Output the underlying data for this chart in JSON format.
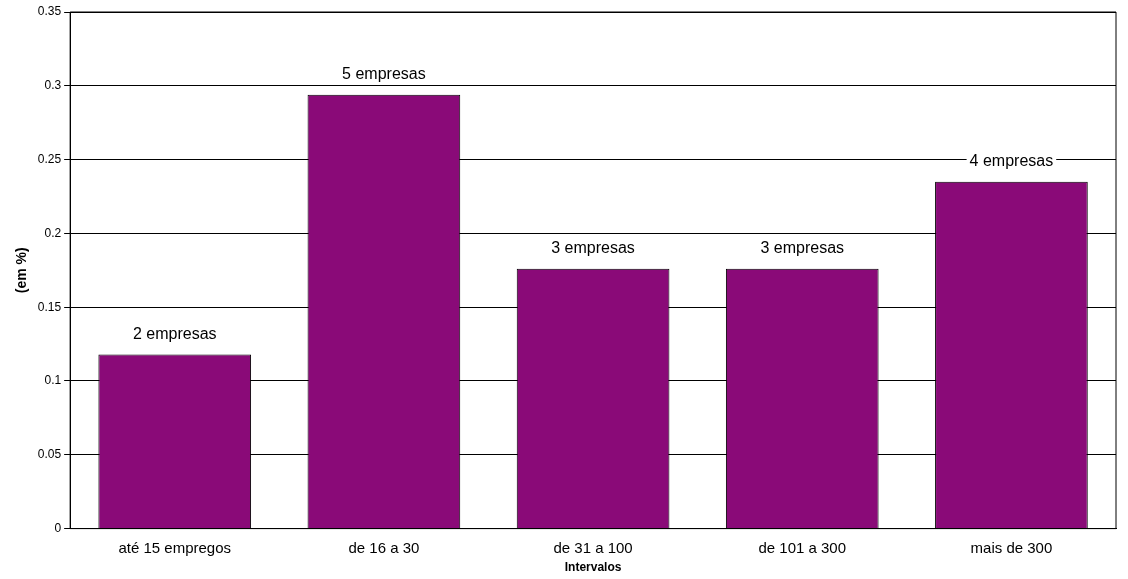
{
  "chart_data": {
    "type": "bar",
    "xlabel": "Intervalos",
    "ylabel": "(em %)",
    "categories": [
      "até 15 empregos",
      "de 16 a 30",
      "de 31 a 100",
      "de 101 a 300",
      "mais de 300"
    ],
    "values": [
      0.118,
      0.294,
      0.176,
      0.176,
      0.235
    ],
    "annotations": [
      {
        "text": "2 empresas",
        "x": "até 15 empregos",
        "y": 0.118
      },
      {
        "text": "5 empresas",
        "x": "de 16 a 30",
        "y": 0.294
      },
      {
        "text": "3 empresas",
        "x": "de 31 a 100",
        "y": 0.176
      },
      {
        "text": "3 empresas",
        "x": "de 101 a 300",
        "y": 0.176
      },
      {
        "text": "4 empresas",
        "x": "mais de 300",
        "y": 0.235
      }
    ],
    "color": "#8a0a78",
    "ylim": [
      0,
      0.35
    ],
    "yticks": [
      0,
      0.05,
      0.1,
      0.15,
      0.2,
      0.25,
      0.3,
      0.35
    ],
    "grid": "y",
    "legend": false
  }
}
